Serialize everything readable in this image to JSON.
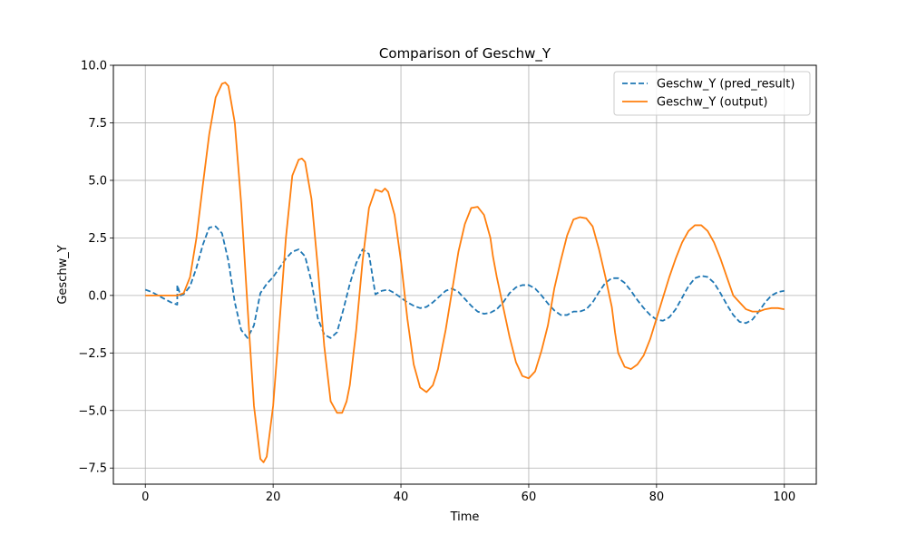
{
  "chart_data": {
    "type": "line",
    "title": "Comparison of Geschw_Y",
    "xlabel": "Time",
    "ylabel": "Geschw_Y",
    "xlim": [
      -5,
      105
    ],
    "ylim": [
      -8.2,
      10
    ],
    "xticks": [
      0,
      20,
      40,
      60,
      80,
      100
    ],
    "xtick_labels": [
      "0",
      "20",
      "40",
      "60",
      "80",
      "100"
    ],
    "yticks": [
      -7.5,
      -5.0,
      -2.5,
      0.0,
      2.5,
      5.0,
      7.5,
      10.0
    ],
    "ytick_labels": [
      "−7.5",
      "−5.0",
      "−2.5",
      "0.0",
      "2.5",
      "5.0",
      "7.5",
      "10.0"
    ],
    "grid": true,
    "legend_position": "top-right",
    "series": [
      {
        "name": "Geschw_Y (pred_result)",
        "color": "#1f77b4",
        "style": "dashed",
        "x": [
          0,
          1,
          2,
          3,
          4,
          5,
          5,
          5.5,
          6,
          7,
          8,
          9,
          10,
          11,
          12,
          13,
          14,
          15,
          16,
          17,
          18,
          19,
          20,
          21,
          22,
          23,
          24,
          25,
          26,
          27,
          28,
          29,
          30,
          31,
          32,
          33,
          34,
          35,
          36,
          37,
          38,
          39,
          40,
          41,
          42,
          43,
          44,
          45,
          46,
          47,
          48,
          49,
          50,
          51,
          52,
          53,
          54,
          55,
          56,
          57,
          58,
          59,
          60,
          61,
          62,
          63,
          64,
          65,
          66,
          67,
          68,
          69,
          70,
          71,
          72,
          73,
          74,
          75,
          76,
          77,
          78,
          79,
          80,
          81,
          82,
          83,
          84,
          85,
          86,
          87,
          88,
          89,
          90,
          91,
          92,
          93,
          94,
          95,
          96,
          97,
          98,
          99,
          100
        ],
        "y": [
          0.25,
          0.15,
          0.0,
          -0.15,
          -0.3,
          -0.4,
          0.45,
          0.0,
          0.05,
          0.4,
          1.2,
          2.2,
          2.95,
          3.0,
          2.7,
          1.5,
          -0.3,
          -1.5,
          -1.85,
          -1.3,
          0.1,
          0.5,
          0.8,
          1.2,
          1.6,
          1.9,
          2.0,
          1.7,
          0.6,
          -1.0,
          -1.7,
          -1.85,
          -1.6,
          -0.6,
          0.5,
          1.4,
          2.0,
          1.8,
          0.05,
          0.2,
          0.25,
          0.1,
          -0.1,
          -0.3,
          -0.45,
          -0.55,
          -0.5,
          -0.3,
          -0.05,
          0.2,
          0.3,
          0.15,
          -0.15,
          -0.45,
          -0.7,
          -0.8,
          -0.75,
          -0.6,
          -0.3,
          0.1,
          0.35,
          0.45,
          0.45,
          0.3,
          0.0,
          -0.35,
          -0.65,
          -0.85,
          -0.85,
          -0.7,
          -0.7,
          -0.6,
          -0.3,
          0.15,
          0.55,
          0.75,
          0.75,
          0.55,
          0.2,
          -0.2,
          -0.55,
          -0.85,
          -1.05,
          -1.1,
          -0.95,
          -0.6,
          -0.1,
          0.4,
          0.75,
          0.85,
          0.8,
          0.55,
          0.1,
          -0.4,
          -0.85,
          -1.15,
          -1.2,
          -1.05,
          -0.7,
          -0.3,
          0.0,
          0.15,
          0.2
        ]
      },
      {
        "name": "Geschw_Y (output)",
        "color": "#ff7f0e",
        "style": "solid",
        "x": [
          0,
          1,
          2,
          3,
          4,
          5,
          6,
          7,
          8,
          9,
          10,
          11,
          12,
          12.5,
          13,
          14,
          15,
          16,
          17,
          18,
          18.5,
          19,
          20,
          21,
          22,
          23,
          24,
          24.5,
          25,
          26,
          27,
          28,
          29,
          30,
          30.8,
          31.5,
          32,
          33,
          34,
          35,
          36,
          37,
          37.5,
          38,
          39,
          40,
          41,
          42,
          43,
          44,
          45,
          45.8,
          46.5,
          47,
          48,
          49,
          50,
          51,
          52,
          53,
          54,
          54.4,
          55,
          56,
          57,
          58,
          59,
          60,
          61,
          62,
          63,
          63.5,
          64,
          65,
          66,
          67,
          68,
          69,
          70,
          71,
          72,
          73,
          73.5,
          74,
          75,
          76,
          77,
          78,
          79,
          80,
          81,
          82,
          83,
          84,
          85,
          86,
          87,
          88,
          89,
          90,
          91,
          92,
          93,
          94,
          95,
          96,
          97,
          98,
          99,
          100
        ],
        "y": [
          0.0,
          0.0,
          0.0,
          0.0,
          0.0,
          0.0,
          0.1,
          0.8,
          2.5,
          4.8,
          7.0,
          8.6,
          9.2,
          9.25,
          9.1,
          7.5,
          4.0,
          -0.5,
          -4.8,
          -7.1,
          -7.25,
          -7.0,
          -4.8,
          -1.2,
          2.5,
          5.2,
          5.9,
          5.95,
          5.8,
          4.2,
          1.2,
          -2.2,
          -4.6,
          -5.1,
          -5.1,
          -4.6,
          -3.9,
          -1.5,
          1.5,
          3.8,
          4.6,
          4.5,
          4.65,
          4.5,
          3.5,
          1.5,
          -1.0,
          -3.0,
          -4.0,
          -4.2,
          -3.9,
          -3.2,
          -2.2,
          -1.5,
          0.2,
          1.9,
          3.1,
          3.8,
          3.85,
          3.5,
          2.5,
          1.7,
          0.8,
          -0.5,
          -1.8,
          -2.9,
          -3.5,
          -3.6,
          -3.3,
          -2.4,
          -1.3,
          -0.5,
          0.3,
          1.5,
          2.6,
          3.3,
          3.4,
          3.35,
          3.0,
          2.0,
          0.8,
          -0.5,
          -1.6,
          -2.5,
          -3.1,
          -3.2,
          -3.0,
          -2.6,
          -1.9,
          -1.0,
          -0.1,
          0.8,
          1.6,
          2.3,
          2.8,
          3.05,
          3.05,
          2.8,
          2.3,
          1.6,
          0.8,
          0.0,
          -0.3,
          -0.6,
          -0.7,
          -0.7,
          -0.6,
          -0.55,
          -0.55,
          -0.6
        ]
      }
    ]
  }
}
